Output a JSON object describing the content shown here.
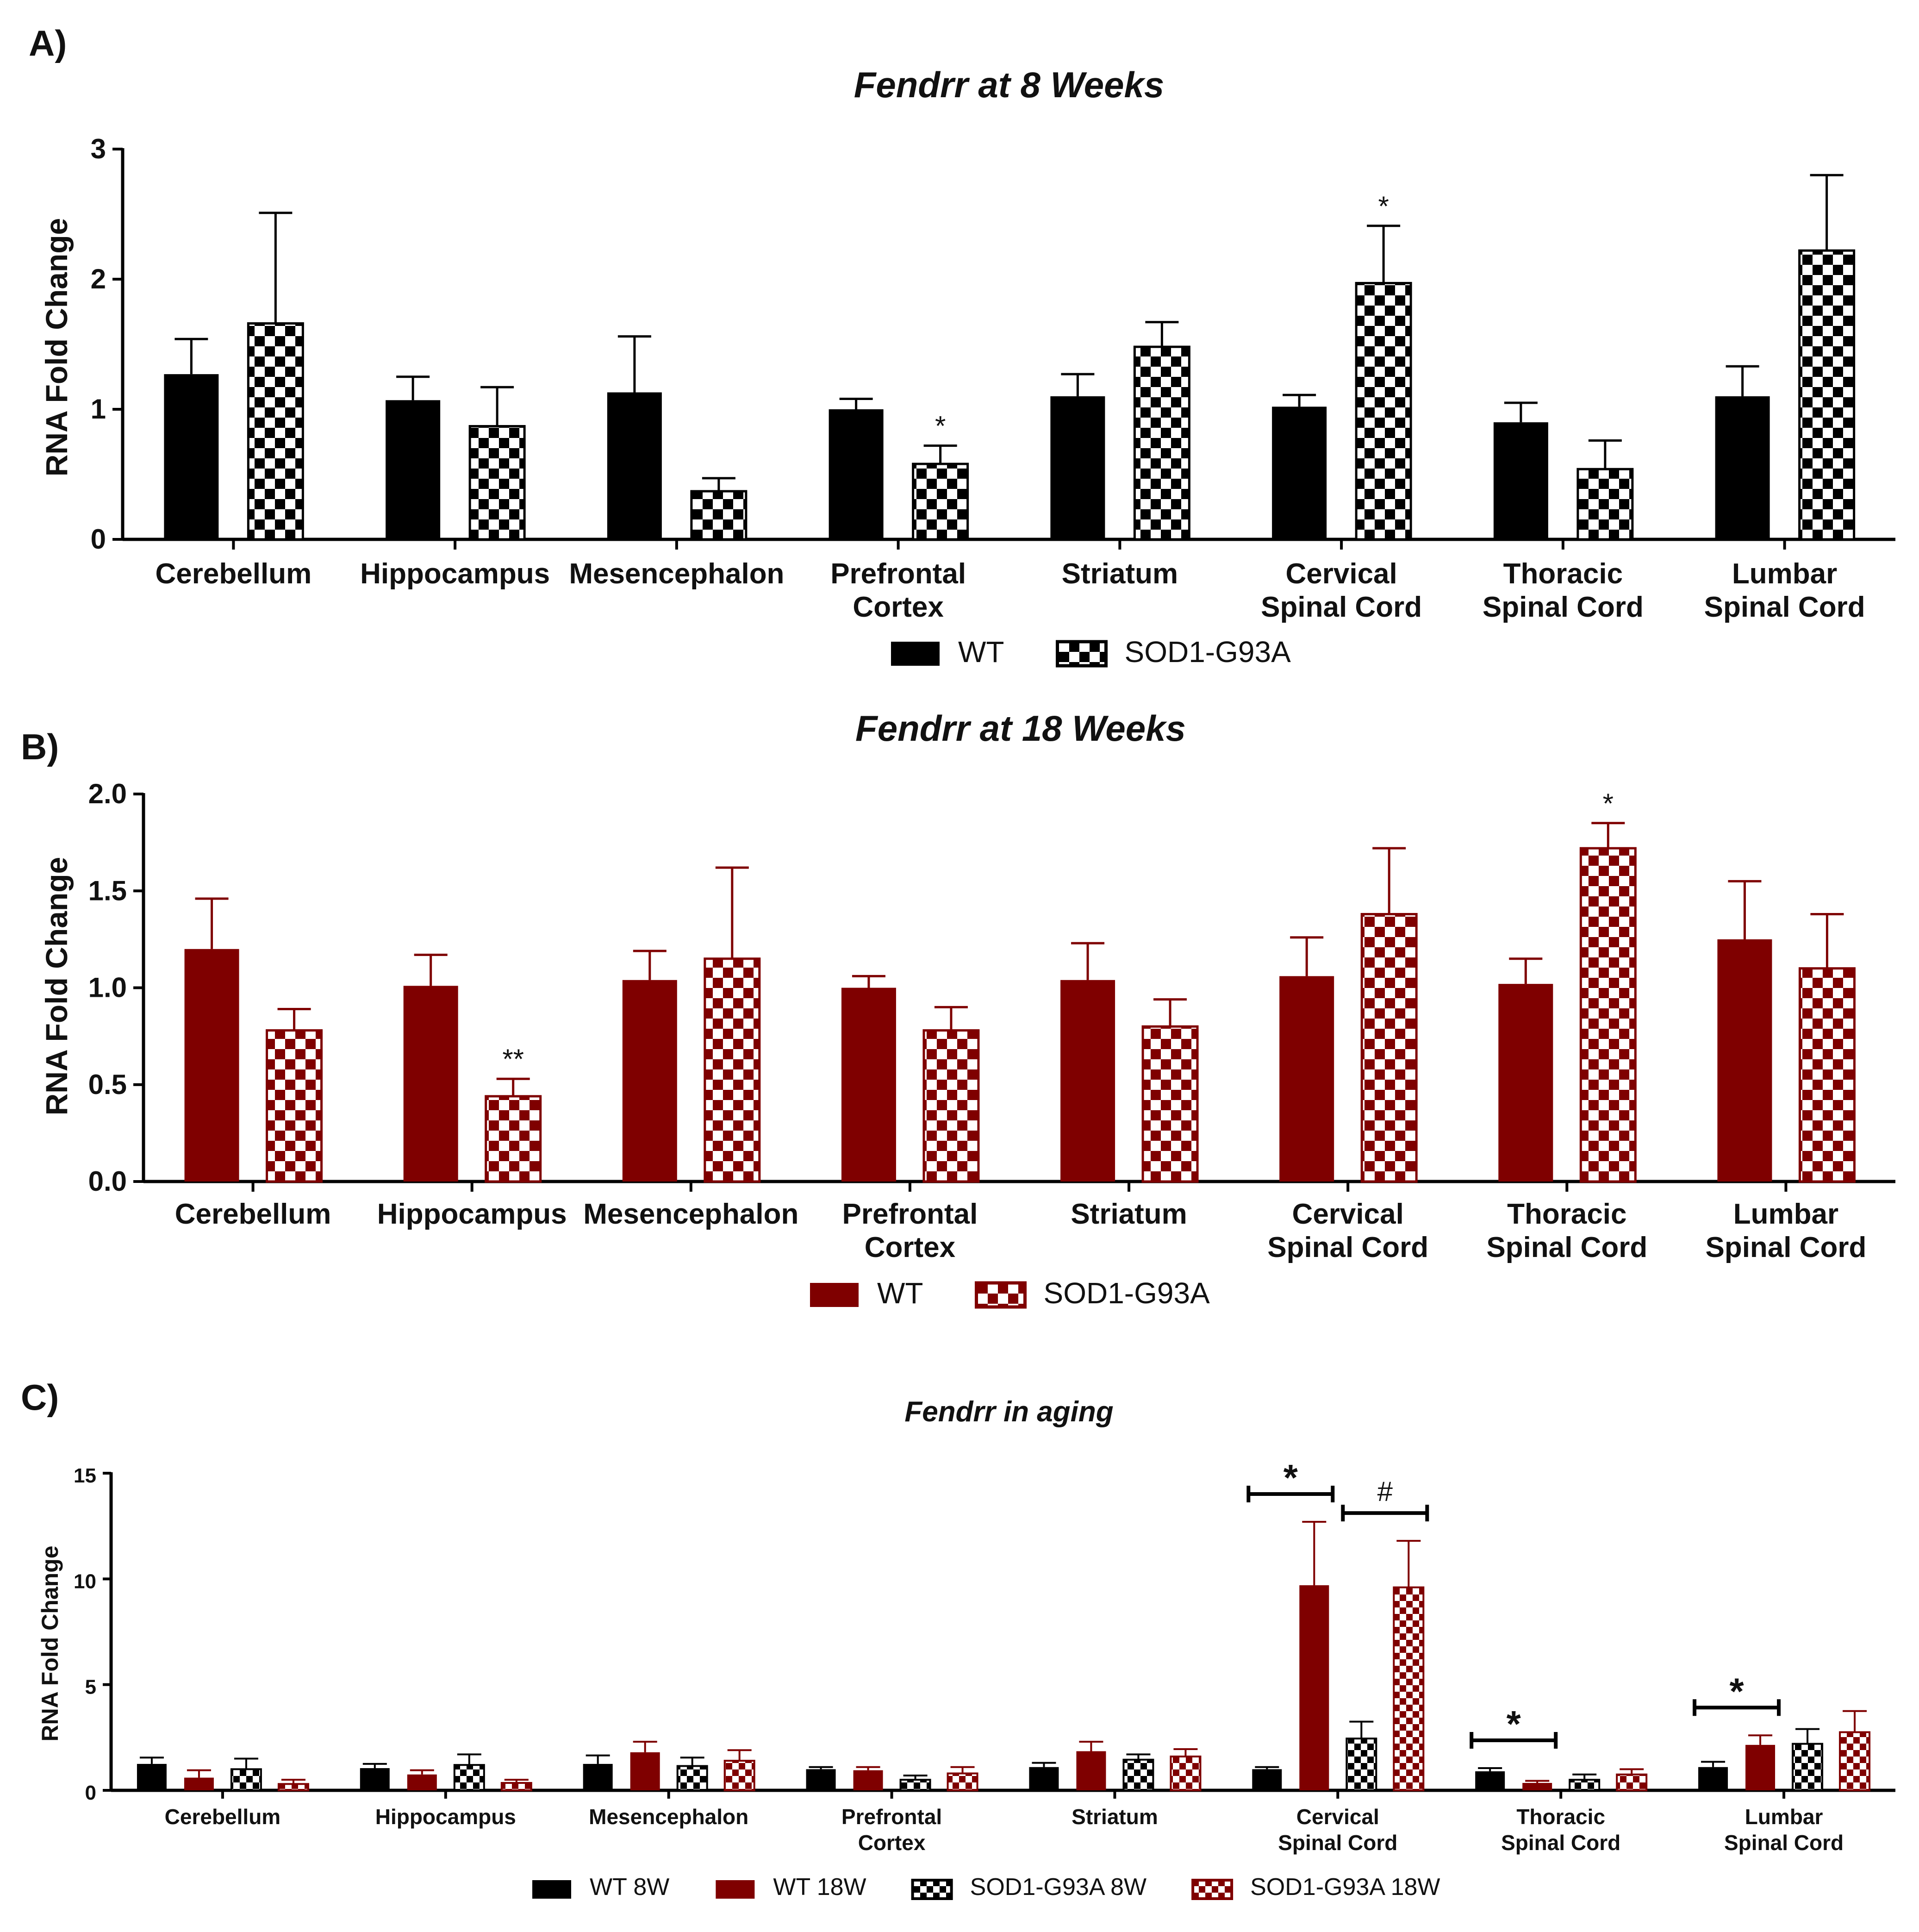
{
  "colors": {
    "wt_8w": "#000000",
    "wt_18w": "#7f0000",
    "bar_outline": "#000000"
  },
  "chart_data": [
    {
      "panel": "A)",
      "type": "bar",
      "title": "Fendrr at 8 Weeks",
      "ylabel": "RNA Fold Change",
      "ylim": [
        0,
        3
      ],
      "yticks": [
        "0",
        "1",
        "2",
        "3"
      ],
      "categories": [
        "Cerebellum",
        "Hippocampus",
        "Mesencephalon",
        "Prefrontal Cortex",
        "Striatum",
        "Cervical Spinal Cord",
        "Thoracic Spinal Cord",
        "Lumbar Spinal Cord"
      ],
      "category_lines": [
        [
          "Cerebellum"
        ],
        [
          "Hippocampus"
        ],
        [
          "Mesencephalon"
        ],
        [
          "Prefrontal",
          "Cortex"
        ],
        [
          "Striatum"
        ],
        [
          "Cervical",
          "Spinal Cord"
        ],
        [
          "Thoracic",
          "Spinal Cord"
        ],
        [
          "Lumbar",
          "Spinal Cord"
        ]
      ],
      "series": [
        {
          "name": "WT",
          "color": "#000000",
          "pattern": "solid",
          "values": [
            1.27,
            1.07,
            1.13,
            1.0,
            1.1,
            1.02,
            0.9,
            1.1
          ],
          "errors": [
            0.27,
            0.18,
            0.43,
            0.08,
            0.17,
            0.09,
            0.15,
            0.23
          ]
        },
        {
          "name": "SOD1-G93A",
          "color": "#000000",
          "pattern": "checker",
          "values": [
            1.66,
            0.87,
            0.37,
            0.58,
            1.48,
            1.97,
            0.54,
            2.22
          ],
          "errors": [
            0.85,
            0.3,
            0.1,
            0.14,
            0.19,
            0.44,
            0.22,
            0.58
          ]
        }
      ],
      "annotations": [
        {
          "text": "*",
          "category": "Prefrontal Cortex",
          "series": "SOD1-G93A"
        },
        {
          "text": "*",
          "category": "Cervical Spinal Cord",
          "series": "SOD1-G93A"
        }
      ],
      "legend": [
        "WT",
        "SOD1-G93A"
      ],
      "legend_position": "bottom"
    },
    {
      "panel": "B)",
      "type": "bar",
      "title": "Fendrr at 18 Weeks",
      "ylabel": "RNA Fold Change",
      "ylim": [
        0,
        2
      ],
      "yticks": [
        "0.0",
        "0.5",
        "1.0",
        "1.5",
        "2.0"
      ],
      "categories": [
        "Cerebellum",
        "Hippocampus",
        "Mesencephalon",
        "Prefrontal Cortex",
        "Striatum",
        "Cervical Spinal Cord",
        "Thoracic Spinal Cord",
        "Lumbar Spinal Cord"
      ],
      "category_lines": [
        [
          "Cerebellum"
        ],
        [
          "Hippocampus"
        ],
        [
          "Mesencephalon"
        ],
        [
          "Prefrontal",
          "Cortex"
        ],
        [
          "Striatum"
        ],
        [
          "Cervical",
          "Spinal Cord"
        ],
        [
          "Thoracic",
          "Spinal Cord"
        ],
        [
          "Lumbar",
          "Spinal Cord"
        ]
      ],
      "series": [
        {
          "name": "WT",
          "color": "#7f0000",
          "pattern": "solid",
          "values": [
            1.2,
            1.01,
            1.04,
            1.0,
            1.04,
            1.06,
            1.02,
            1.25
          ],
          "errors": [
            0.26,
            0.16,
            0.15,
            0.06,
            0.19,
            0.2,
            0.13,
            0.3
          ]
        },
        {
          "name": "SOD1-G93A",
          "color": "#7f0000",
          "pattern": "checker",
          "values": [
            0.78,
            0.44,
            1.15,
            0.78,
            0.8,
            1.38,
            1.72,
            1.1
          ],
          "errors": [
            0.11,
            0.09,
            0.47,
            0.12,
            0.14,
            0.34,
            0.13,
            0.28
          ]
        }
      ],
      "annotations": [
        {
          "text": "**",
          "category": "Hippocampus",
          "series": "SOD1-G93A"
        },
        {
          "text": "*",
          "category": "Thoracic Spinal Cord",
          "series": "SOD1-G93A"
        }
      ],
      "legend": [
        "WT",
        "SOD1-G93A"
      ],
      "legend_position": "bottom"
    },
    {
      "panel": "C)",
      "type": "bar",
      "title": "Fendrr in aging",
      "ylabel": "RNA Fold Change",
      "ylim": [
        0,
        15
      ],
      "yticks": [
        "0",
        "5",
        "10",
        "15"
      ],
      "categories": [
        "Cerebellum",
        "Hippocampus",
        "Mesencephalon",
        "Prefrontal Cortex",
        "Striatum",
        "Cervical Spinal Cord",
        "Thoracic Spinal Cord",
        "Lumbar Spinal Cord"
      ],
      "category_lines": [
        [
          "Cerebellum"
        ],
        [
          "Hippocampus"
        ],
        [
          "Mesencephalon"
        ],
        [
          "Prefrontal",
          "Cortex"
        ],
        [
          "Striatum"
        ],
        [
          "Cervical",
          "Spinal Cord"
        ],
        [
          "Thoracic",
          "Spinal Cord"
        ],
        [
          "Lumbar",
          "Spinal Cord"
        ]
      ],
      "series": [
        {
          "name": "WT 8W",
          "color": "#000000",
          "pattern": "solid",
          "values": [
            1.25,
            1.05,
            1.25,
            1.0,
            1.1,
            1.0,
            0.9,
            1.1
          ],
          "errors": [
            0.3,
            0.2,
            0.4,
            0.1,
            0.2,
            0.1,
            0.15,
            0.25
          ]
        },
        {
          "name": "WT 18W",
          "color": "#7f0000",
          "pattern": "solid",
          "values": [
            0.6,
            0.75,
            1.8,
            0.95,
            1.85,
            9.7,
            0.35,
            2.15
          ],
          "errors": [
            0.35,
            0.2,
            0.5,
            0.15,
            0.45,
            3.0,
            0.1,
            0.45
          ]
        },
        {
          "name": "SOD1-G93A 8W",
          "color": "#000000",
          "pattern": "checker",
          "values": [
            1.0,
            1.2,
            1.15,
            0.5,
            1.45,
            2.45,
            0.5,
            2.2
          ],
          "errors": [
            0.5,
            0.5,
            0.4,
            0.2,
            0.25,
            0.8,
            0.25,
            0.7
          ]
        },
        {
          "name": "SOD1-G93A 18W",
          "color": "#7f0000",
          "pattern": "checker",
          "values": [
            0.3,
            0.35,
            1.4,
            0.8,
            1.6,
            9.6,
            0.75,
            2.75
          ],
          "errors": [
            0.2,
            0.15,
            0.5,
            0.3,
            0.35,
            2.2,
            0.25,
            1.0
          ]
        }
      ],
      "annotations": [
        {
          "text": "*",
          "category": "Cervical Spinal Cord",
          "bracket": [
            "WT 8W",
            "WT 18W"
          ]
        },
        {
          "text": "#",
          "category": "Cervical Spinal Cord",
          "bracket": [
            "SOD1-G93A 8W",
            "SOD1-G93A 18W"
          ]
        },
        {
          "text": "*",
          "category": "Thoracic Spinal Cord",
          "bracket": [
            "WT 8W",
            "WT 18W"
          ]
        },
        {
          "text": "*",
          "category": "Lumbar Spinal Cord",
          "bracket": [
            "WT 8W",
            "WT 18W"
          ]
        }
      ],
      "legend": [
        "WT 8W",
        "WT 18W",
        "SOD1-G93A 8W",
        "SOD1-G93A 18W"
      ],
      "legend_position": "bottom"
    }
  ]
}
